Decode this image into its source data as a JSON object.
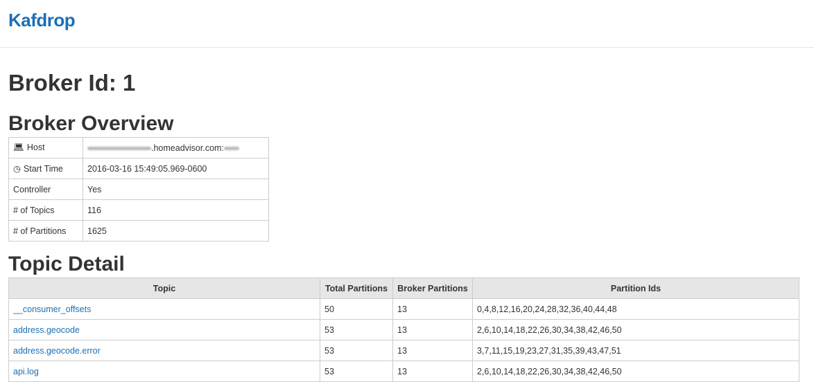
{
  "header": {
    "brand": "Kafdrop"
  },
  "page_title": "Broker Id: 1",
  "overview": {
    "title": "Broker Overview",
    "rows": [
      {
        "icon": "laptop-icon",
        "label": "Host",
        "value": ".homeadvisor.com:"
      },
      {
        "icon": "clock-icon",
        "label": "Start Time",
        "value": "2016-03-16 15:49:05.969-0600"
      },
      {
        "label": "Controller",
        "value": "Yes"
      },
      {
        "label": "# of Topics",
        "value": "116"
      },
      {
        "label": "# of Partitions",
        "value": "1625"
      }
    ]
  },
  "topics": {
    "title": "Topic Detail",
    "columns": [
      "Topic",
      "Total Partitions",
      "Broker Partitions",
      "Partition Ids"
    ],
    "rows": [
      {
        "topic": "__consumer_offsets",
        "total": "50",
        "broker": "13",
        "ids": "0,4,8,12,16,20,24,28,32,36,40,44,48"
      },
      {
        "topic": "address.geocode",
        "total": "53",
        "broker": "13",
        "ids": "2,6,10,14,18,22,26,30,34,38,42,46,50"
      },
      {
        "topic": "address.geocode.error",
        "total": "53",
        "broker": "13",
        "ids": "3,7,11,15,19,23,27,31,35,39,43,47,51"
      },
      {
        "topic": "api.log",
        "total": "53",
        "broker": "13",
        "ids": "2,6,10,14,18,22,26,30,34,38,42,46,50"
      }
    ]
  }
}
